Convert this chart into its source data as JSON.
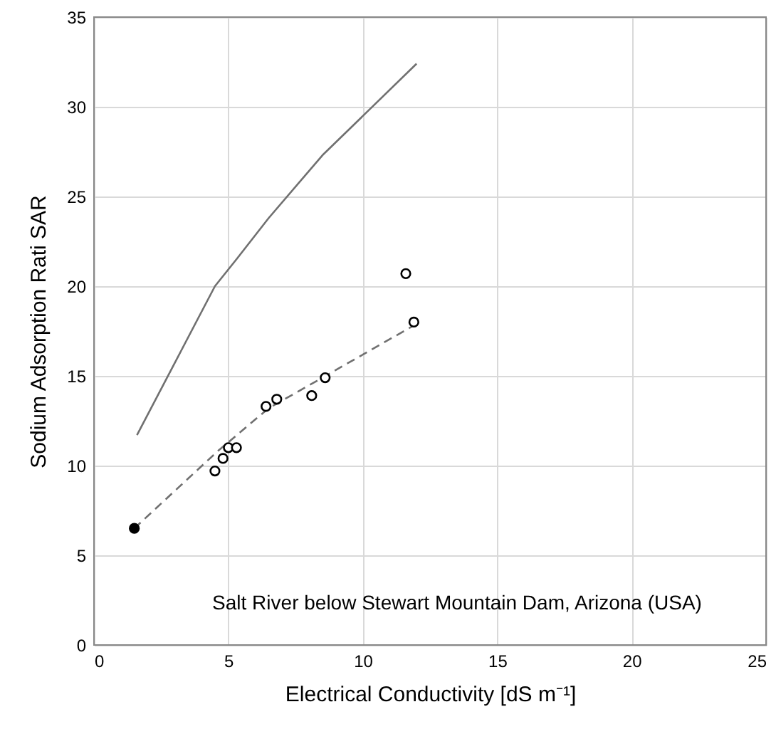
{
  "chart_data": {
    "type": "scatter",
    "xlabel": "Electrical Conductivity [dS m⁻¹]",
    "ylabel": "Sodium Adsorption Rati SAR",
    "annotations": [
      "Salt River below Stewart Mountain Dam, Arizona (USA)"
    ],
    "xlim": [
      0,
      25
    ],
    "xticks": [
      0,
      5,
      10,
      15,
      20,
      25
    ],
    "ylim": [
      0,
      35
    ],
    "yticks": [
      0,
      5,
      10,
      15,
      20,
      25,
      30,
      35
    ],
    "grid": true,
    "series": [
      {
        "type": "line",
        "color": "#707070",
        "line_style": "solid",
        "marker": "none",
        "x": [
          1.6,
          4.5,
          5.3,
          6.5,
          8.5,
          12
        ],
        "values": [
          11.7,
          20,
          21.5,
          23.8,
          27.3,
          32.4
        ]
      },
      {
        "type": "line",
        "color": "#707070",
        "line_style": "dashed",
        "marker": "none",
        "x": [
          1.5,
          4.6,
          6.5,
          8.5,
          12
        ],
        "values": [
          6.5,
          10.8,
          13.2,
          14.9,
          17.9
        ]
      },
      {
        "color": "#000000",
        "marker": "circle",
        "x": [
          1.5
        ],
        "values": [
          6.5
        ]
      },
      {
        "color": "#ffffff",
        "marker": "circle",
        "x": [
          4.5,
          4.8,
          5.0,
          5.3,
          6.4,
          6.8,
          8.1,
          8.6,
          11.6,
          11.9
        ],
        "values": [
          9.7,
          10.4,
          11.0,
          11.0,
          13.3,
          13.7,
          13.9,
          14.9,
          20.7,
          18.0
        ]
      }
    ]
  }
}
